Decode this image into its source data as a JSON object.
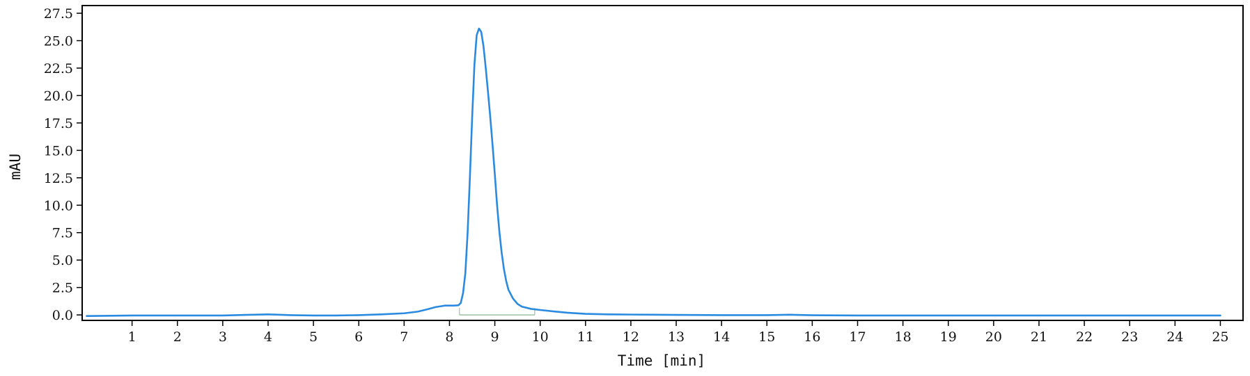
{
  "chart_data": {
    "type": "line",
    "title": "",
    "xlabel": "Time [min]",
    "ylabel": "mAU",
    "xlim": [
      -0.1,
      25.5
    ],
    "ylim": [
      -0.5,
      28.2
    ],
    "x_ticks": [
      1,
      2,
      3,
      4,
      5,
      6,
      7,
      8,
      9,
      10,
      11,
      12,
      13,
      14,
      15,
      16,
      17,
      18,
      19,
      20,
      21,
      22,
      23,
      24,
      25
    ],
    "y_ticks": [
      "0.0",
      "2.5",
      "5.0",
      "7.5",
      "10.0",
      "12.5",
      "15.0",
      "17.5",
      "20.0",
      "22.5",
      "25.0",
      "27.5"
    ],
    "grid": false,
    "legend": "none",
    "series": [
      {
        "color": "#2a8ae0",
        "points": [
          [
            0.0,
            -0.1
          ],
          [
            1.0,
            -0.05
          ],
          [
            2.0,
            -0.05
          ],
          [
            3.0,
            -0.05
          ],
          [
            3.5,
            0.0
          ],
          [
            4.0,
            0.05
          ],
          [
            4.5,
            -0.02
          ],
          [
            5.0,
            -0.05
          ],
          [
            5.5,
            -0.05
          ],
          [
            6.0,
            -0.02
          ],
          [
            6.5,
            0.05
          ],
          [
            7.0,
            0.15
          ],
          [
            7.3,
            0.3
          ],
          [
            7.5,
            0.5
          ],
          [
            7.7,
            0.72
          ],
          [
            7.9,
            0.85
          ],
          [
            8.1,
            0.85
          ],
          [
            8.2,
            0.88
          ],
          [
            8.25,
            1.1
          ],
          [
            8.3,
            2.0
          ],
          [
            8.35,
            3.8
          ],
          [
            8.4,
            7.5
          ],
          [
            8.45,
            12.5
          ],
          [
            8.5,
            18.0
          ],
          [
            8.55,
            22.8
          ],
          [
            8.6,
            25.5
          ],
          [
            8.65,
            26.1
          ],
          [
            8.7,
            25.8
          ],
          [
            8.75,
            24.5
          ],
          [
            8.8,
            22.5
          ],
          [
            8.85,
            20.3
          ],
          [
            8.9,
            18.0
          ],
          [
            8.95,
            15.5
          ],
          [
            9.0,
            12.8
          ],
          [
            9.05,
            10.0
          ],
          [
            9.1,
            7.6
          ],
          [
            9.15,
            5.7
          ],
          [
            9.2,
            4.2
          ],
          [
            9.25,
            3.1
          ],
          [
            9.3,
            2.3
          ],
          [
            9.4,
            1.5
          ],
          [
            9.5,
            1.0
          ],
          [
            9.6,
            0.75
          ],
          [
            9.8,
            0.55
          ],
          [
            10.0,
            0.45
          ],
          [
            10.3,
            0.32
          ],
          [
            10.6,
            0.2
          ],
          [
            11.0,
            0.1
          ],
          [
            11.5,
            0.05
          ],
          [
            12.0,
            0.03
          ],
          [
            12.5,
            0.02
          ],
          [
            13.0,
            0.0
          ],
          [
            14.0,
            -0.02
          ],
          [
            15.0,
            -0.02
          ],
          [
            15.5,
            0.02
          ],
          [
            16.0,
            -0.03
          ],
          [
            17.0,
            -0.05
          ],
          [
            18.0,
            -0.05
          ],
          [
            19.0,
            -0.05
          ],
          [
            20.0,
            -0.05
          ],
          [
            21.0,
            -0.05
          ],
          [
            22.0,
            -0.05
          ],
          [
            23.0,
            -0.05
          ],
          [
            24.0,
            -0.05
          ],
          [
            25.0,
            -0.05
          ]
        ]
      }
    ],
    "baseline": {
      "color": "#9bbfa8",
      "points": [
        [
          8.22,
          0.0
        ],
        [
          9.88,
          0.0
        ]
      ],
      "markers": [
        8.22,
        9.88
      ]
    }
  }
}
